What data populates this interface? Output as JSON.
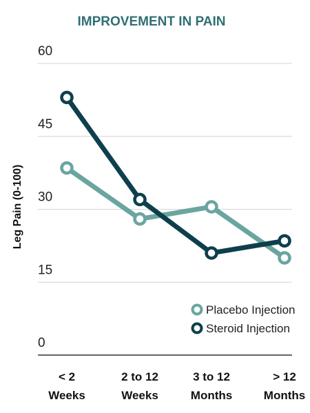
{
  "chart_data": {
    "type": "line",
    "title": "IMPROVEMENT IN PAIN",
    "ylabel": "Leg Pain (0-100)",
    "xlabel": "",
    "ylim": [
      0,
      60
    ],
    "yticks": [
      "0",
      "15",
      "30",
      "45",
      "60"
    ],
    "grid": true,
    "legend_position": "bottom-right",
    "categories": [
      [
        "< 2",
        "Weeks"
      ],
      [
        "2 to 12",
        "Weeks"
      ],
      [
        "3 to 12",
        "Months"
      ],
      [
        "> 12",
        "Months"
      ]
    ],
    "series": [
      {
        "name": "Placebo Injection",
        "color": "#6aa5a0",
        "values": [
          38.5,
          28,
          30.5,
          20
        ]
      },
      {
        "name": "Steroid Injection",
        "color": "#0e3f4d",
        "values": [
          53,
          32,
          21,
          23.5
        ]
      }
    ]
  }
}
